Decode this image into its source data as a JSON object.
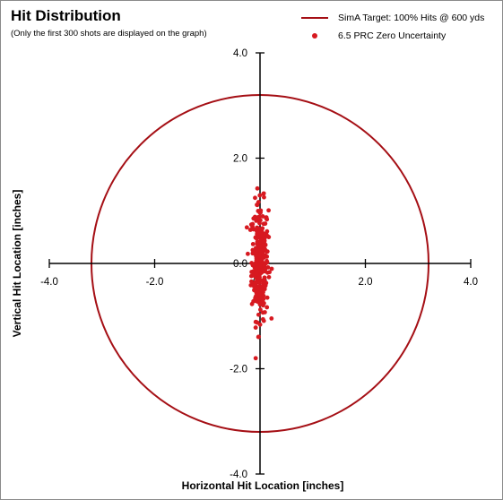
{
  "chart_data": {
    "type": "scatter",
    "title": "Hit Distribution",
    "subtitle": "(Only the first 300 shots are displayed on the graph)",
    "xlabel": "Horizontal Hit Location [inches]",
    "ylabel": "Vertical Hit Location [inches]",
    "xlim": [
      -4.0,
      4.0
    ],
    "ylim": [
      -4.0,
      4.0
    ],
    "x_ticks": [
      "-4.0",
      "-2.0",
      "0.0",
      "2.0",
      "4.0"
    ],
    "y_ticks": [
      "-4.0",
      "-2.0",
      "0.0",
      "2.0",
      "4.0"
    ],
    "legend_position": "top-right",
    "grid": false,
    "series": [
      {
        "name": "SimA Target:  100% Hits @ 600 yds",
        "kind": "circle",
        "color": "#A50F15",
        "radius": 3.2
      },
      {
        "name": "6.5 PRC Zero Uncertainty",
        "kind": "scatter",
        "color": "#D71920",
        "count": 300,
        "x_spread_sd": 0.08,
        "y_spread_sd": 0.55,
        "x_range": [
          -0.25,
          0.3
        ],
        "y_range": [
          -1.8,
          2.0
        ]
      }
    ]
  }
}
